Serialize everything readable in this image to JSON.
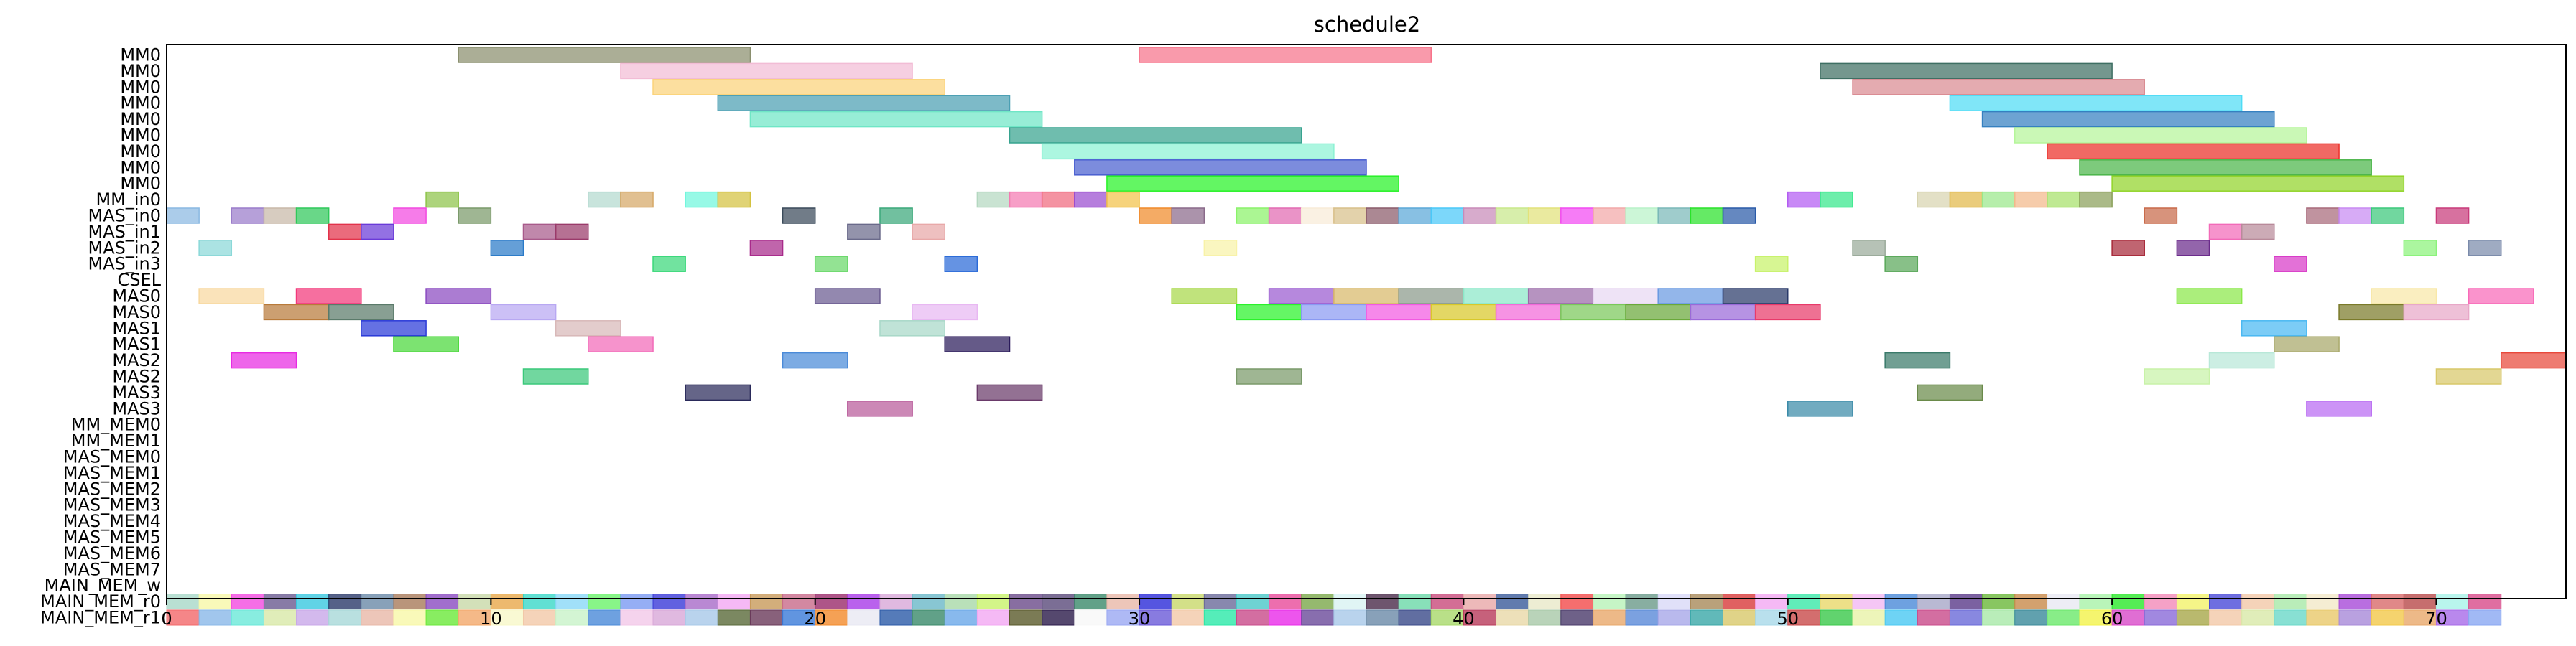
{
  "chart_data": {
    "type": "gantt",
    "title": "schedule2",
    "xlabel": "",
    "ylabel": "",
    "xlim": [
      0,
      74
    ],
    "x_ticks": [
      0,
      10,
      20,
      30,
      40,
      50,
      60,
      70
    ],
    "x_tick_labels": [
      "0",
      "10",
      "20",
      "30",
      "40",
      "50",
      "60",
      "70"
    ],
    "grid": false,
    "rows": [
      "MM0",
      "MM0",
      "MM0",
      "MM0",
      "MM0",
      "MM0",
      "MM0",
      "MM0",
      "MM0",
      "MM_in0",
      "MAS_in0",
      "MAS_in1",
      "MAS_in2",
      "MAS_in3",
      "CSEL",
      "MAS0",
      "MAS0",
      "MAS1",
      "MAS1",
      "MAS2",
      "MAS2",
      "MAS3",
      "MAS3",
      "MM_MEM0",
      "MM_MEM1",
      "MAS_MEM0",
      "MAS_MEM1",
      "MAS_MEM2",
      "MAS_MEM3",
      "MAS_MEM4",
      "MAS_MEM5",
      "MAS_MEM6",
      "MAS_MEM7",
      "MAIN_MEM_w",
      "MAIN_MEM_r0",
      "MAIN_MEM_r1"
    ],
    "bars": [
      {
        "row": 0,
        "start": 9,
        "end": 18,
        "color": "#8a8f6e"
      },
      {
        "row": 0,
        "start": 30,
        "end": 39,
        "color": "#f7738a"
      },
      {
        "row": 1,
        "start": 14,
        "end": 23,
        "color": "#f2bcd5"
      },
      {
        "row": 1,
        "start": 51,
        "end": 60,
        "color": "#3e6f63"
      },
      {
        "row": 2,
        "start": 15,
        "end": 24,
        "color": "#fbd37a"
      },
      {
        "row": 2,
        "start": 52,
        "end": 61,
        "color": "#d98b92"
      },
      {
        "row": 3,
        "start": 17,
        "end": 26,
        "color": "#4b9fb3"
      },
      {
        "row": 3,
        "start": 55,
        "end": 64,
        "color": "#4fdcf5"
      },
      {
        "row": 4,
        "start": 18,
        "end": 27,
        "color": "#6fe6c6"
      },
      {
        "row": 4,
        "start": 56,
        "end": 65,
        "color": "#3580c0"
      },
      {
        "row": 5,
        "start": 26,
        "end": 35,
        "color": "#37a38f"
      },
      {
        "row": 5,
        "start": 57,
        "end": 66,
        "color": "#b5f59a"
      },
      {
        "row": 6,
        "start": 27,
        "end": 36,
        "color": "#8cf2d4"
      },
      {
        "row": 6,
        "start": 58,
        "end": 67,
        "color": "#ec2f28"
      },
      {
        "row": 7,
        "start": 28,
        "end": 37,
        "color": "#4a5fd0"
      },
      {
        "row": 7,
        "start": 59,
        "end": 68,
        "color": "#4bb54a"
      },
      {
        "row": 8,
        "start": 29,
        "end": 38,
        "color": "#27f227"
      },
      {
        "row": 8,
        "start": 60,
        "end": 69,
        "color": "#92d42a"
      },
      {
        "row": 9,
        "start": 8,
        "end": 9,
        "color": "#8ec44a"
      },
      {
        "row": 9,
        "start": 13,
        "end": 14,
        "color": "#b3d9cf"
      },
      {
        "row": 9,
        "start": 14,
        "end": 15,
        "color": "#d6a866"
      },
      {
        "row": 9,
        "start": 16,
        "end": 17,
        "color": "#6ff6dc"
      },
      {
        "row": 9,
        "start": 17,
        "end": 18,
        "color": "#d4c240"
      },
      {
        "row": 9,
        "start": 25,
        "end": 26,
        "color": "#b4d8c0"
      },
      {
        "row": 9,
        "start": 26,
        "end": 27,
        "color": "#f47ab2"
      },
      {
        "row": 9,
        "start": 27,
        "end": 28,
        "color": "#f06a7e"
      },
      {
        "row": 9,
        "start": 28,
        "end": 29,
        "color": "#9a4cd0"
      },
      {
        "row": 9,
        "start": 29,
        "end": 30,
        "color": "#f2c24a"
      },
      {
        "row": 9,
        "start": 50,
        "end": 51,
        "color": "#b35cf2"
      },
      {
        "row": 9,
        "start": 51,
        "end": 52,
        "color": "#35e88a"
      },
      {
        "row": 9,
        "start": 54,
        "end": 55,
        "color": "#d8d4b0"
      },
      {
        "row": 9,
        "start": 55,
        "end": 56,
        "color": "#e2b84a"
      },
      {
        "row": 9,
        "start": 56,
        "end": 57,
        "color": "#9ae88a"
      },
      {
        "row": 9,
        "start": 57,
        "end": 58,
        "color": "#f2b88a"
      },
      {
        "row": 9,
        "start": 58,
        "end": 59,
        "color": "#a6e06a"
      },
      {
        "row": 9,
        "start": 59,
        "end": 60,
        "color": "#8aa05a"
      },
      {
        "row": 10,
        "start": 0,
        "end": 1,
        "color": "#8ab8e2"
      },
      {
        "row": 10,
        "start": 2,
        "end": 3,
        "color": "#9a7cca"
      },
      {
        "row": 10,
        "start": 3,
        "end": 4,
        "color": "#c8b8a8"
      },
      {
        "row": 10,
        "start": 4,
        "end": 5,
        "color": "#2fc85a"
      },
      {
        "row": 10,
        "start": 7,
        "end": 8,
        "color": "#f24ae0"
      },
      {
        "row": 10,
        "start": 9,
        "end": 10,
        "color": "#7a9a6a"
      },
      {
        "row": 10,
        "start": 19,
        "end": 20,
        "color": "#3a4a5a"
      },
      {
        "row": 10,
        "start": 22,
        "end": 23,
        "color": "#3aa87a"
      },
      {
        "row": 10,
        "start": 30,
        "end": 31,
        "color": "#f08a2a"
      },
      {
        "row": 10,
        "start": 31,
        "end": 32,
        "color": "#8a6a8a"
      },
      {
        "row": 10,
        "start": 33,
        "end": 34,
        "color": "#8af26a"
      },
      {
        "row": 10,
        "start": 34,
        "end": 35,
        "color": "#e26ab2"
      },
      {
        "row": 10,
        "start": 35,
        "end": 36,
        "color": "#f8ecd8"
      },
      {
        "row": 10,
        "start": 36,
        "end": 37,
        "color": "#d8c08a"
      },
      {
        "row": 10,
        "start": 37,
        "end": 38,
        "color": "#8a5a6a"
      },
      {
        "row": 10,
        "start": 38,
        "end": 39,
        "color": "#5aa8d8"
      },
      {
        "row": 10,
        "start": 39,
        "end": 40,
        "color": "#4ac8f8"
      },
      {
        "row": 10,
        "start": 40,
        "end": 41,
        "color": "#c88ab8"
      },
      {
        "row": 10,
        "start": 41,
        "end": 42,
        "color": "#c8e88a"
      },
      {
        "row": 10,
        "start": 42,
        "end": 43,
        "color": "#e2e27a"
      },
      {
        "row": 10,
        "start": 43,
        "end": 44,
        "color": "#f24af2"
      },
      {
        "row": 10,
        "start": 44,
        "end": 45,
        "color": "#f2a8a8"
      },
      {
        "row": 10,
        "start": 45,
        "end": 46,
        "color": "#b8f2c8"
      },
      {
        "row": 10,
        "start": 46,
        "end": 47,
        "color": "#7ab8b8"
      },
      {
        "row": 10,
        "start": 47,
        "end": 48,
        "color": "#2ae22a"
      },
      {
        "row": 10,
        "start": 48,
        "end": 49,
        "color": "#2a5aa8"
      },
      {
        "row": 10,
        "start": 61,
        "end": 62,
        "color": "#c86a4a"
      },
      {
        "row": 10,
        "start": 66,
        "end": 67,
        "color": "#a86a7a"
      },
      {
        "row": 10,
        "start": 67,
        "end": 68,
        "color": "#c88af2"
      },
      {
        "row": 10,
        "start": 68,
        "end": 69,
        "color": "#3ac87a"
      },
      {
        "row": 10,
        "start": 70,
        "end": 71,
        "color": "#c83a7a"
      },
      {
        "row": 11,
        "start": 5,
        "end": 6,
        "color": "#e2324a"
      },
      {
        "row": 11,
        "start": 6,
        "end": 7,
        "color": "#6a3ad8"
      },
      {
        "row": 11,
        "start": 11,
        "end": 12,
        "color": "#a85a8a"
      },
      {
        "row": 11,
        "start": 12,
        "end": 13,
        "color": "#9a3a6a"
      },
      {
        "row": 11,
        "start": 21,
        "end": 22,
        "color": "#6a6a8a"
      },
      {
        "row": 11,
        "start": 23,
        "end": 24,
        "color": "#e8a8a8"
      },
      {
        "row": 11,
        "start": 63,
        "end": 64,
        "color": "#f26ab8"
      },
      {
        "row": 11,
        "start": 64,
        "end": 65,
        "color": "#b88a9a"
      },
      {
        "row": 12,
        "start": 1,
        "end": 2,
        "color": "#8ad8d8"
      },
      {
        "row": 12,
        "start": 10,
        "end": 11,
        "color": "#2a7ac8"
      },
      {
        "row": 12,
        "start": 18,
        "end": 19,
        "color": "#a82a8a"
      },
      {
        "row": 12,
        "start": 32,
        "end": 33,
        "color": "#f8f2a8"
      },
      {
        "row": 12,
        "start": 52,
        "end": 53,
        "color": "#9aaa9a"
      },
      {
        "row": 12,
        "start": 60,
        "end": 61,
        "color": "#a82a3a"
      },
      {
        "row": 12,
        "start": 62,
        "end": 63,
        "color": "#6a2a8a"
      },
      {
        "row": 12,
        "start": 69,
        "end": 70,
        "color": "#8af27a"
      },
      {
        "row": 12,
        "start": 71,
        "end": 72,
        "color": "#7a8aaa"
      },
      {
        "row": 13,
        "start": 15,
        "end": 16,
        "color": "#3ad87a"
      },
      {
        "row": 13,
        "start": 20,
        "end": 21,
        "color": "#6ad86a"
      },
      {
        "row": 13,
        "start": 24,
        "end": 25,
        "color": "#2a6ad8"
      },
      {
        "row": 13,
        "start": 49,
        "end": 50,
        "color": "#c8f26a"
      },
      {
        "row": 13,
        "start": 53,
        "end": 54,
        "color": "#5aa85a"
      },
      {
        "row": 13,
        "start": 65,
        "end": 66,
        "color": "#d83ac8"
      },
      {
        "row": 15,
        "start": 1,
        "end": 3,
        "color": "#f8d8a0"
      },
      {
        "row": 15,
        "start": 4,
        "end": 6,
        "color": "#f2387a"
      },
      {
        "row": 15,
        "start": 8,
        "end": 10,
        "color": "#8a4ac0"
      },
      {
        "row": 15,
        "start": 20,
        "end": 22,
        "color": "#6a5a90"
      },
      {
        "row": 15,
        "start": 31,
        "end": 33,
        "color": "#a8d84a"
      },
      {
        "row": 15,
        "start": 34,
        "end": 36,
        "color": "#9a5ad0"
      },
      {
        "row": 15,
        "start": 36,
        "end": 38,
        "color": "#d8b86a"
      },
      {
        "row": 15,
        "start": 38,
        "end": 40,
        "color": "#8a9a8a"
      },
      {
        "row": 15,
        "start": 40,
        "end": 42,
        "color": "#8ae8c8"
      },
      {
        "row": 15,
        "start": 42,
        "end": 44,
        "color": "#9a6aa8"
      },
      {
        "row": 15,
        "start": 44,
        "end": 46,
        "color": "#e8d8f2"
      },
      {
        "row": 15,
        "start": 46,
        "end": 48,
        "color": "#6a9ae2"
      },
      {
        "row": 15,
        "start": 48,
        "end": 50,
        "color": "#2a3a6a"
      },
      {
        "row": 15,
        "start": 62,
        "end": 64,
        "color": "#8ae84a"
      },
      {
        "row": 15,
        "start": 68,
        "end": 70,
        "color": "#f8e8a8"
      },
      {
        "row": 15,
        "start": 71,
        "end": 73,
        "color": "#f86ab8"
      },
      {
        "row": 16,
        "start": 3,
        "end": 5,
        "color": "#b87a3a"
      },
      {
        "row": 16,
        "start": 5,
        "end": 7,
        "color": "#5a7a6a"
      },
      {
        "row": 16,
        "start": 10,
        "end": 12,
        "color": "#b8a8f2"
      },
      {
        "row": 16,
        "start": 23,
        "end": 25,
        "color": "#e8b8f2"
      },
      {
        "row": 16,
        "start": 33,
        "end": 35,
        "color": "#2af22a"
      },
      {
        "row": 16,
        "start": 35,
        "end": 37,
        "color": "#8a9af2"
      },
      {
        "row": 16,
        "start": 37,
        "end": 39,
        "color": "#f25ae2"
      },
      {
        "row": 16,
        "start": 39,
        "end": 41,
        "color": "#d8c82a"
      },
      {
        "row": 16,
        "start": 41,
        "end": 43,
        "color": "#f26ad8"
      },
      {
        "row": 16,
        "start": 43,
        "end": 45,
        "color": "#7ac85a"
      },
      {
        "row": 16,
        "start": 45,
        "end": 47,
        "color": "#6aa83a"
      },
      {
        "row": 16,
        "start": 47,
        "end": 49,
        "color": "#9a6ad8"
      },
      {
        "row": 16,
        "start": 49,
        "end": 51,
        "color": "#e83a6a"
      },
      {
        "row": 16,
        "start": 67,
        "end": 69,
        "color": "#7a7a2a"
      },
      {
        "row": 16,
        "start": 69,
        "end": 71,
        "color": "#e8a8c8"
      },
      {
        "row": 17,
        "start": 6,
        "end": 8,
        "color": "#2a3ad8"
      },
      {
        "row": 17,
        "start": 12,
        "end": 14,
        "color": "#d8b8b8"
      },
      {
        "row": 17,
        "start": 22,
        "end": 24,
        "color": "#a8d8c8"
      },
      {
        "row": 17,
        "start": 64,
        "end": 66,
        "color": "#4ab8f2"
      },
      {
        "row": 18,
        "start": 7,
        "end": 9,
        "color": "#4ad83a"
      },
      {
        "row": 18,
        "start": 13,
        "end": 15,
        "color": "#f26ab8"
      },
      {
        "row": 18,
        "start": 24,
        "end": 26,
        "color": "#2a1a5a"
      },
      {
        "row": 18,
        "start": 65,
        "end": 67,
        "color": "#a8a86a"
      },
      {
        "row": 19,
        "start": 2,
        "end": 4,
        "color": "#e82ae2"
      },
      {
        "row": 19,
        "start": 19,
        "end": 21,
        "color": "#4a8ad8"
      },
      {
        "row": 19,
        "start": 53,
        "end": 55,
        "color": "#3a7a6a"
      },
      {
        "row": 19,
        "start": 63,
        "end": 65,
        "color": "#b8e8d8"
      },
      {
        "row": 19,
        "start": 72,
        "end": 74,
        "color": "#e8483a"
      },
      {
        "row": 20,
        "start": 11,
        "end": 13,
        "color": "#3ac87a"
      },
      {
        "row": 20,
        "start": 33,
        "end": 35,
        "color": "#7a9a6a"
      },
      {
        "row": 20,
        "start": 61,
        "end": 63,
        "color": "#c8f2a8"
      },
      {
        "row": 20,
        "start": 70,
        "end": 72,
        "color": "#d8c86a"
      },
      {
        "row": 21,
        "start": 16,
        "end": 18,
        "color": "#2a2a5a"
      },
      {
        "row": 21,
        "start": 25,
        "end": 27,
        "color": "#6a3a6a"
      },
      {
        "row": 21,
        "start": 54,
        "end": 56,
        "color": "#6a8a4a"
      },
      {
        "row": 22,
        "start": 21,
        "end": 23,
        "color": "#b85a9a"
      },
      {
        "row": 22,
        "start": 50,
        "end": 52,
        "color": "#3a8aa8"
      },
      {
        "row": 22,
        "start": 66,
        "end": 68,
        "color": "#b86af2"
      }
    ],
    "mem_r0_colors": [
      "#a8d8c8",
      "#f8f8a8",
      "#f24ae0",
      "#6a5a90",
      "#3ac8e0",
      "#2a3a6a",
      "#6a8aa8",
      "#a87a5a",
      "#8a4ac0",
      "#c8d8a8",
      "#e8a84a",
      "#3ad8c8",
      "#8ad8f8",
      "#6af26a",
      "#7a9af2",
      "#3a3ad8",
      "#a86ac8",
      "#f2a8f2",
      "#c89a5a",
      "#c86a8a",
      "#9a2a6a",
      "#a83ae8",
      "#d8a8d8",
      "#6ab8c8",
      "#a8d8a8",
      "#c8f26a",
      "#6a4a8a",
      "#5a4a7a",
      "#3a8a6a",
      "#e8b8a8",
      "#2a2ad8",
      "#c8d86a",
      "#6a6a9a",
      "#4ac8c8",
      "#e84a9a",
      "#7aa84a",
      "#d8f2f2",
      "#4a2a4a",
      "#6ad8a8",
      "#c84a7a",
      "#e8a8a8",
      "#3a5a9a",
      "#e8e8c8",
      "#f24a4a",
      "#b8f2b8",
      "#6a9a8a",
      "#d8d8f8",
      "#a88a5a",
      "#d83a3a",
      "#f2a8f2",
      "#3ae8a8",
      "#e8d86a",
      "#f2b8f2",
      "#4a8ad8",
      "#a8a8c8",
      "#5a3a8a",
      "#6ab83a",
      "#c88a4a",
      "#e8e8f2",
      "#a8f2a8",
      "#2ae82a",
      "#f28ab8",
      "#f2f26a",
      "#4a4ad8",
      "#f2c8a8",
      "#a8e8a8",
      "#f2e8c8",
      "#a84ad8",
      "#d86a6a",
      "#b84a4a",
      "#a8f2e8",
      "#d84a8a"
    ],
    "mem_r1_colors": [
      "#f2686a",
      "#8ab8e8",
      "#6ae8d8",
      "#d8e8a8",
      "#c8a8e8",
      "#a8d8d8",
      "#e8b8a8",
      "#f8f8a8",
      "#6ae83a",
      "#f2a86a",
      "#f8f8c8",
      "#f2c8a8",
      "#c8f2c8",
      "#4a8ad8",
      "#f2c8e8",
      "#d8a8d8",
      "#a8c8e8",
      "#5a6a3a",
      "#6a3a5a",
      "#3a7ad8",
      "#f28a2a",
      "#e8e8f2",
      "#2a5aa8",
      "#3a8a6a",
      "#6aa8e8",
      "#f2a8f2",
      "#5a5a2a",
      "#2a1a4a",
      "#f8f8f8",
      "#9aa8f2",
      "#6a5ad8",
      "#f2c8a8",
      "#2ae8a8",
      "#c84a8a",
      "#e82ae8",
      "#6a4a9a",
      "#a8c8e8",
      "#6a8aa8",
      "#3a4a8a",
      "#a8d86a",
      "#b83a5a",
      "#e8d8a8",
      "#a8c8a8",
      "#4a3a6a",
      "#e8a86a",
      "#5a8ad8",
      "#a8a8e8",
      "#3aa8a8",
      "#d8c86a",
      "#a8d8e8",
      "#c84a4a",
      "#3ac84a",
      "#e8f2a8",
      "#4ac8f2",
      "#c84a8a",
      "#6a6ad8",
      "#a8e8a8",
      "#3a8a9a",
      "#6ae86a",
      "#f2f24a",
      "#d84ac8",
      "#8a6ad8",
      "#a8a84a",
      "#f2c8a8",
      "#d8e8a8",
      "#6ad8c8",
      "#e8c86a",
      "#a88ad8",
      "#f2c84a",
      "#e8a86a",
      "#a86ae8",
      "#8aa8f2"
    ]
  }
}
